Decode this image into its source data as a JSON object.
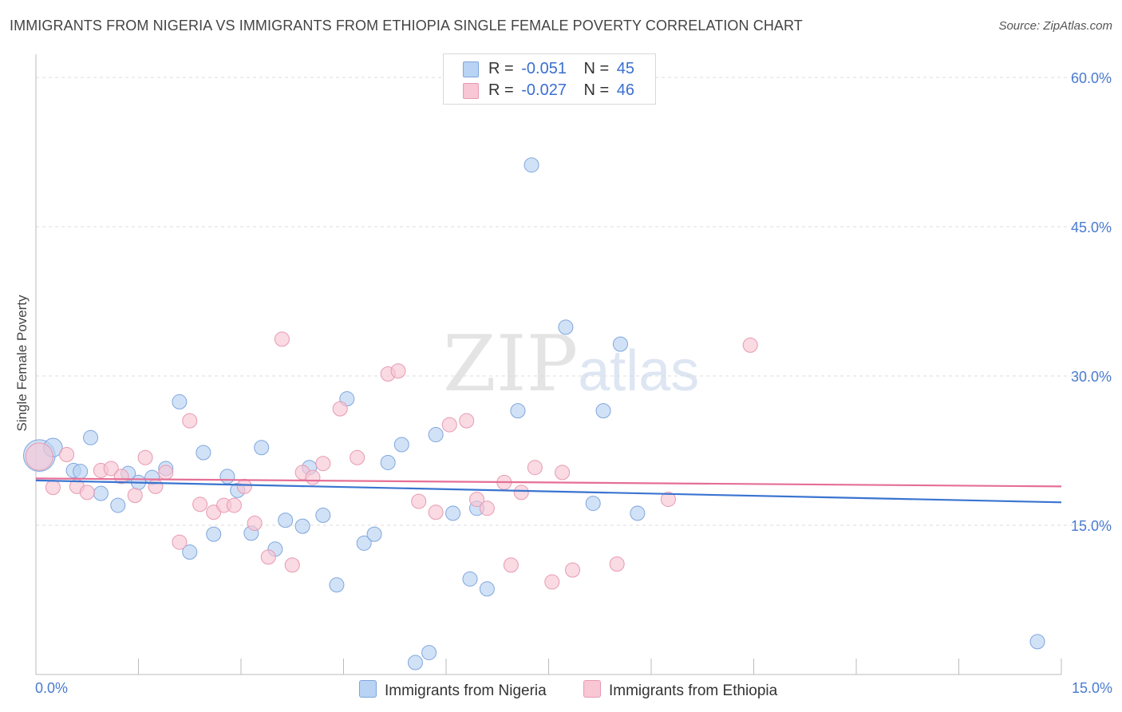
{
  "title": "IMMIGRANTS FROM NIGERIA VS IMMIGRANTS FROM ETHIOPIA SINGLE FEMALE POVERTY CORRELATION CHART",
  "source": "Source: ZipAtlas.com",
  "watermark": {
    "zip": "ZIP",
    "atlas": "atlas"
  },
  "legend": {
    "r_label": "R =",
    "n_label": "N =",
    "nigeria": {
      "r": "-0.051",
      "n": "45"
    },
    "ethiopia": {
      "r": "-0.027",
      "n": "46"
    }
  },
  "colors": {
    "nigeria_fill": "#b8d3f3",
    "nigeria_stroke": "#7fa6dc",
    "nigeria_line": "#3a74d0",
    "ethiopia_fill": "#f8c6d4",
    "ethiopia_stroke": "#e79ab2",
    "ethiopia_line": "#e56f95",
    "tick": "#4a7bd0"
  },
  "chart_data": {
    "type": "scatter",
    "title": "IMMIGRANTS FROM NIGERIA VS IMMIGRANTS FROM ETHIOPIA SINGLE FEMALE POVERTY CORRELATION CHART",
    "xlabel": "",
    "ylabel": "Single Female Poverty",
    "xlim": [
      0,
      15
    ],
    "ylim": [
      0,
      60
    ],
    "x_tick_labels": [
      "0.0%",
      "15.0%"
    ],
    "y_ticks": [
      15,
      30,
      45,
      60
    ],
    "y_tick_labels": [
      "15.0%",
      "30.0%",
      "45.0%",
      "60.0%"
    ],
    "grid": true,
    "series": [
      {
        "name": "Immigrants from Nigeria",
        "trend": {
          "x": [
            0,
            15
          ],
          "y": [
            19.5,
            17.3
          ]
        },
        "points": [
          [
            0.05,
            22.0,
            2.2
          ],
          [
            0.25,
            22.8,
            1.3
          ],
          [
            0.55,
            20.5,
            1
          ],
          [
            0.65,
            20.4,
            1
          ],
          [
            0.8,
            23.8,
            1
          ],
          [
            0.95,
            18.2,
            1
          ],
          [
            1.2,
            17.0,
            1
          ],
          [
            1.35,
            20.2,
            1
          ],
          [
            1.5,
            19.3,
            1
          ],
          [
            1.7,
            19.8,
            1
          ],
          [
            1.9,
            20.7,
            1
          ],
          [
            2.1,
            27.4,
            1
          ],
          [
            2.25,
            12.3,
            1
          ],
          [
            2.45,
            22.3,
            1
          ],
          [
            2.6,
            14.1,
            1
          ],
          [
            2.8,
            19.9,
            1
          ],
          [
            2.95,
            18.5,
            1
          ],
          [
            3.15,
            14.2,
            1
          ],
          [
            3.3,
            22.8,
            1
          ],
          [
            3.5,
            12.6,
            1
          ],
          [
            3.65,
            15.5,
            1
          ],
          [
            3.9,
            14.9,
            1
          ],
          [
            4.0,
            20.8,
            1
          ],
          [
            4.2,
            16.0,
            1
          ],
          [
            4.4,
            9.0,
            1
          ],
          [
            4.55,
            27.7,
            1
          ],
          [
            4.8,
            13.2,
            1
          ],
          [
            4.95,
            14.1,
            1
          ],
          [
            5.15,
            21.3,
            1
          ],
          [
            5.35,
            23.1,
            1
          ],
          [
            5.55,
            1.2,
            1
          ],
          [
            5.75,
            2.2,
            1
          ],
          [
            5.85,
            24.1,
            1
          ],
          [
            6.1,
            16.2,
            1
          ],
          [
            6.35,
            9.6,
            1
          ],
          [
            6.45,
            16.7,
            1
          ],
          [
            6.6,
            8.6,
            1
          ],
          [
            7.05,
            26.5,
            1
          ],
          [
            7.25,
            51.2,
            1
          ],
          [
            7.75,
            34.9,
            1
          ],
          [
            8.15,
            17.2,
            1
          ],
          [
            8.3,
            26.5,
            1
          ],
          [
            8.55,
            33.2,
            1
          ],
          [
            8.8,
            16.2,
            1
          ],
          [
            14.65,
            3.3,
            1
          ]
        ]
      },
      {
        "name": "Immigrants from Ethiopia",
        "trend": {
          "x": [
            0,
            15
          ],
          "y": [
            19.7,
            18.9
          ]
        },
        "points": [
          [
            0.05,
            21.9,
            1.9
          ],
          [
            0.25,
            18.8,
            1
          ],
          [
            0.45,
            22.1,
            1
          ],
          [
            0.6,
            18.9,
            1
          ],
          [
            0.75,
            18.3,
            1
          ],
          [
            0.95,
            20.5,
            1
          ],
          [
            1.1,
            20.7,
            1
          ],
          [
            1.25,
            19.9,
            1
          ],
          [
            1.45,
            18.0,
            1
          ],
          [
            1.6,
            21.8,
            1
          ],
          [
            1.75,
            18.9,
            1
          ],
          [
            1.9,
            20.3,
            1
          ],
          [
            2.1,
            13.3,
            1
          ],
          [
            2.25,
            25.5,
            1
          ],
          [
            2.4,
            17.1,
            1
          ],
          [
            2.6,
            16.3,
            1
          ],
          [
            2.75,
            17.0,
            1
          ],
          [
            2.9,
            17.0,
            1
          ],
          [
            3.05,
            18.9,
            1
          ],
          [
            3.2,
            15.2,
            1
          ],
          [
            3.4,
            11.8,
            1
          ],
          [
            3.6,
            33.7,
            1
          ],
          [
            3.75,
            11.0,
            1
          ],
          [
            3.9,
            20.3,
            1
          ],
          [
            4.05,
            19.8,
            1
          ],
          [
            4.2,
            21.2,
            1
          ],
          [
            4.45,
            26.7,
            1
          ],
          [
            4.7,
            21.8,
            1
          ],
          [
            5.15,
            30.2,
            1
          ],
          [
            5.3,
            30.5,
            1
          ],
          [
            5.6,
            17.4,
            1
          ],
          [
            5.85,
            16.3,
            1
          ],
          [
            6.05,
            25.1,
            1
          ],
          [
            6.3,
            25.5,
            1
          ],
          [
            6.45,
            17.6,
            1
          ],
          [
            6.6,
            16.7,
            1
          ],
          [
            6.85,
            19.3,
            1
          ],
          [
            6.95,
            11.0,
            1
          ],
          [
            7.1,
            18.3,
            1
          ],
          [
            7.3,
            20.8,
            1
          ],
          [
            7.55,
            9.3,
            1
          ],
          [
            7.7,
            20.3,
            1
          ],
          [
            7.85,
            10.5,
            1
          ],
          [
            8.5,
            11.1,
            1
          ],
          [
            9.25,
            17.6,
            1
          ],
          [
            10.45,
            33.1,
            1
          ]
        ]
      }
    ]
  }
}
